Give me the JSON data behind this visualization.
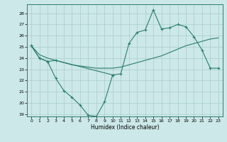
{
  "xlabel": "Humidex (Indice chaleur)",
  "background_color": "#cce8e8",
  "line_color": "#2d7d6d",
  "grid_color": "#aacccc",
  "xlim": [
    -0.5,
    23.5
  ],
  "ylim": [
    18.8,
    28.8
  ],
  "yticks": [
    19,
    20,
    21,
    22,
    23,
    24,
    25,
    26,
    27,
    28
  ],
  "xticks": [
    0,
    1,
    2,
    3,
    4,
    5,
    6,
    7,
    8,
    9,
    10,
    11,
    12,
    13,
    14,
    15,
    16,
    17,
    18,
    19,
    20,
    21,
    22,
    23
  ],
  "line1_x": [
    0,
    1,
    2,
    3,
    10,
    11,
    12,
    13,
    14,
    15,
    16,
    17,
    18,
    19,
    20,
    21,
    22,
    23
  ],
  "line1_y": [
    25.1,
    24.0,
    23.7,
    23.8,
    22.5,
    22.6,
    25.3,
    26.3,
    26.5,
    28.3,
    26.6,
    26.7,
    27.0,
    26.8,
    25.9,
    24.7,
    23.1,
    23.1
  ],
  "line2_x": [
    0,
    1,
    2,
    3,
    4,
    5,
    6,
    7,
    8,
    9,
    10
  ],
  "line2_y": [
    25.1,
    24.0,
    23.7,
    22.2,
    21.1,
    20.5,
    19.8,
    18.9,
    18.8,
    20.1,
    22.5
  ],
  "line3_x": [
    0,
    1,
    2,
    3,
    4,
    5,
    6,
    7,
    8,
    9,
    10,
    11,
    12,
    13,
    14,
    15,
    16,
    17,
    18,
    19,
    20,
    21,
    22,
    23
  ],
  "line3_y": [
    25.1,
    24.3,
    24.0,
    23.8,
    23.6,
    23.4,
    23.3,
    23.2,
    23.1,
    23.1,
    23.1,
    23.2,
    23.4,
    23.6,
    23.8,
    24.0,
    24.2,
    24.5,
    24.8,
    25.1,
    25.3,
    25.5,
    25.7,
    25.8
  ]
}
